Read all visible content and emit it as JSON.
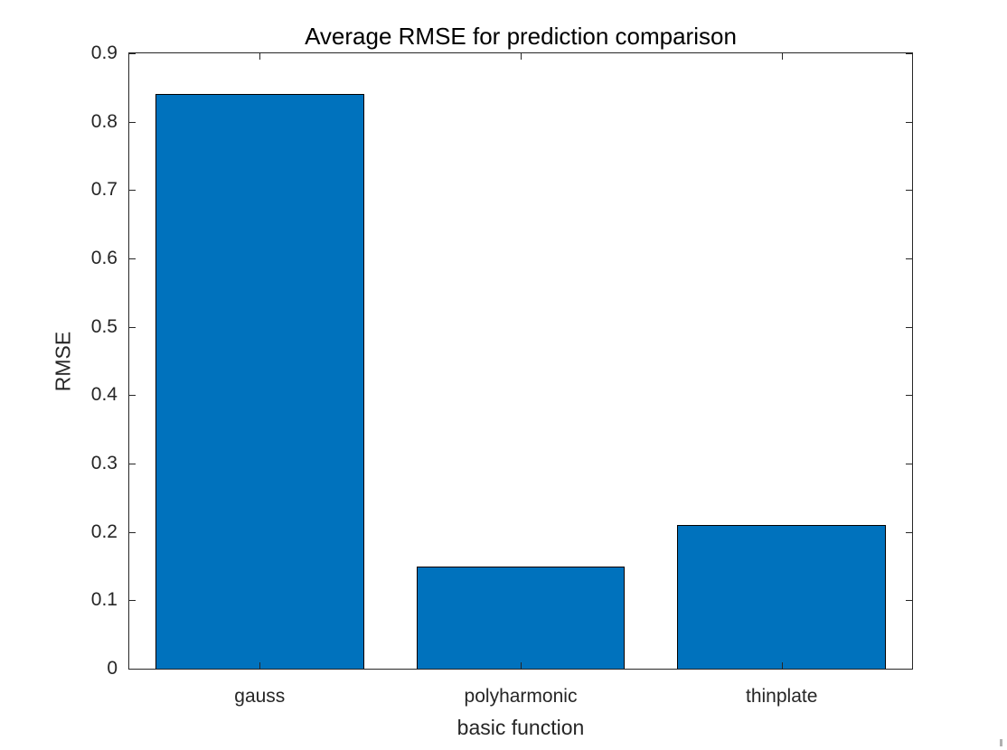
{
  "chart_data": {
    "type": "bar",
    "title": "Average RMSE for prediction comparison",
    "xlabel": "basic function",
    "ylabel": "RMSE",
    "categories": [
      "gauss",
      "polyharmonic",
      "thinplate"
    ],
    "values": [
      0.84,
      0.15,
      0.21
    ],
    "ylim": [
      0,
      0.9
    ],
    "yticks": [
      0,
      0.1,
      0.2,
      0.3,
      0.4,
      0.5,
      0.6,
      0.7,
      0.8,
      0.9
    ],
    "ytick_labels": [
      "0",
      "0.1",
      "0.2",
      "0.3",
      "0.4",
      "0.5",
      "0.6",
      "0.7",
      "0.8",
      "0.9"
    ],
    "grid": false,
    "legend": "none",
    "bar_width_fraction": 0.8,
    "colors": {
      "bar_fill": "#0072BD",
      "bar_edge": "#000000",
      "axis": "#262626",
      "tick_text": "#262626",
      "title_text": "#000000",
      "background": "#ffffff"
    }
  }
}
